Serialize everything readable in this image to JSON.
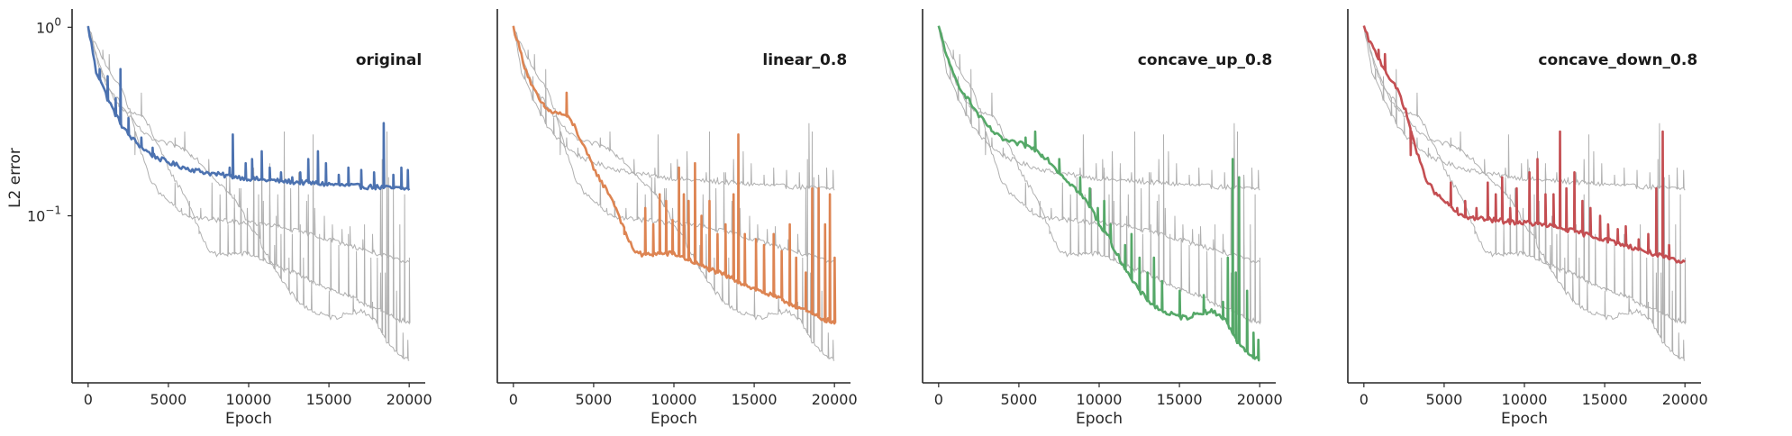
{
  "chart_data": {
    "type": "line",
    "layout": "1x4 small multiples, shared y axis",
    "y_scale": "log",
    "ylim": [
      0.013,
      1.25
    ],
    "xlim": [
      -1000,
      21000
    ],
    "ylabel": "L2 error",
    "xlabel": "Epoch",
    "x_ticks": [
      0,
      5000,
      10000,
      15000,
      20000
    ],
    "y_ticks": [
      {
        "value": 1,
        "base": "10",
        "exp": "0"
      },
      {
        "value": 0.1,
        "base": "10",
        "exp": "−1"
      }
    ],
    "grid": false,
    "note": "Each panel highlights one series in color; the other three series are drawn in thin gray.",
    "series_colors": [
      "#4c72b0",
      "#dd8452",
      "#55a868",
      "#c44e52"
    ],
    "background_color": "#b0b0b0",
    "panels": [
      {
        "title": "original",
        "series": "original",
        "color": "#4c72b0",
        "base": [
          [
            0,
            1.0
          ],
          [
            200,
            0.82
          ],
          [
            500,
            0.58
          ],
          [
            800,
            0.52
          ],
          [
            1200,
            0.42
          ],
          [
            1600,
            0.36
          ],
          [
            2000,
            0.31
          ],
          [
            2500,
            0.27
          ],
          [
            3000,
            0.245
          ],
          [
            3500,
            0.225
          ],
          [
            4000,
            0.21
          ],
          [
            4500,
            0.2
          ],
          [
            5000,
            0.192
          ],
          [
            6000,
            0.18
          ],
          [
            7000,
            0.172
          ],
          [
            8000,
            0.166
          ],
          [
            9000,
            0.162
          ],
          [
            10000,
            0.158
          ],
          [
            11000,
            0.155
          ],
          [
            12000,
            0.153
          ],
          [
            13000,
            0.151
          ],
          [
            14000,
            0.149
          ],
          [
            15000,
            0.147
          ],
          [
            16000,
            0.145
          ],
          [
            17000,
            0.143
          ],
          [
            18000,
            0.142
          ],
          [
            19000,
            0.14
          ],
          [
            20000,
            0.139
          ]
        ],
        "spikes": [
          [
            700,
            0.6
          ],
          [
            1200,
            0.55
          ],
          [
            1700,
            0.42
          ],
          [
            2000,
            0.6
          ],
          [
            2500,
            0.33
          ],
          [
            3300,
            0.26
          ],
          [
            4000,
            0.23
          ],
          [
            8800,
            0.18
          ],
          [
            9000,
            0.27
          ],
          [
            9800,
            0.19
          ],
          [
            10200,
            0.2
          ],
          [
            10800,
            0.22
          ],
          [
            11300,
            0.18
          ],
          [
            12000,
            0.17
          ],
          [
            12700,
            0.16
          ],
          [
            13200,
            0.17
          ],
          [
            13700,
            0.2
          ],
          [
            14300,
            0.22
          ],
          [
            14800,
            0.19
          ],
          [
            15600,
            0.165
          ],
          [
            16200,
            0.18
          ],
          [
            17000,
            0.175
          ],
          [
            17800,
            0.17
          ],
          [
            18400,
            0.31
          ],
          [
            19000,
            0.165
          ],
          [
            19500,
            0.18
          ],
          [
            19900,
            0.175
          ]
        ]
      },
      {
        "title": "linear_0.8",
        "series": "linear_0.8",
        "color": "#dd8452",
        "base": [
          [
            0,
            1.0
          ],
          [
            300,
            0.82
          ],
          [
            700,
            0.62
          ],
          [
            1200,
            0.48
          ],
          [
            1700,
            0.4
          ],
          [
            2200,
            0.36
          ],
          [
            2800,
            0.35
          ],
          [
            3300,
            0.34
          ],
          [
            3800,
            0.3
          ],
          [
            4300,
            0.24
          ],
          [
            5000,
            0.18
          ],
          [
            5500,
            0.15
          ],
          [
            6000,
            0.13
          ],
          [
            6500,
            0.105
          ],
          [
            7000,
            0.08
          ],
          [
            7500,
            0.066
          ],
          [
            8000,
            0.062
          ],
          [
            9000,
            0.063
          ],
          [
            10000,
            0.063
          ],
          [
            11000,
            0.058
          ],
          [
            12000,
            0.053
          ],
          [
            13000,
            0.049
          ],
          [
            14000,
            0.045
          ],
          [
            15000,
            0.041
          ],
          [
            16000,
            0.038
          ],
          [
            17000,
            0.035
          ],
          [
            18000,
            0.032
          ],
          [
            19000,
            0.029
          ],
          [
            20000,
            0.027
          ]
        ],
        "spikes": [
          [
            1900,
            0.38
          ],
          [
            3300,
            0.45
          ],
          [
            6900,
            0.08
          ],
          [
            8200,
            0.11
          ],
          [
            8700,
            0.09
          ],
          [
            9100,
            0.13
          ],
          [
            9500,
            0.12
          ],
          [
            9900,
            0.095
          ],
          [
            10300,
            0.18
          ],
          [
            10600,
            0.13
          ],
          [
            10900,
            0.12
          ],
          [
            11300,
            0.19
          ],
          [
            11700,
            0.1
          ],
          [
            12200,
            0.12
          ],
          [
            12700,
            0.08
          ],
          [
            13200,
            0.09
          ],
          [
            13700,
            0.13
          ],
          [
            14000,
            0.27
          ],
          [
            14400,
            0.08
          ],
          [
            15100,
            0.075
          ],
          [
            15600,
            0.07
          ],
          [
            16200,
            0.08
          ],
          [
            16700,
            0.065
          ],
          [
            17200,
            0.09
          ],
          [
            17600,
            0.06
          ],
          [
            18200,
            0.05
          ],
          [
            18600,
            0.14
          ],
          [
            19000,
            0.14
          ],
          [
            19400,
            0.09
          ],
          [
            19700,
            0.13
          ],
          [
            20000,
            0.06
          ]
        ]
      },
      {
        "title": "concave_up_0.8",
        "series": "concave_up_0.8",
        "color": "#55a868",
        "base": [
          [
            0,
            1.0
          ],
          [
            300,
            0.82
          ],
          [
            700,
            0.62
          ],
          [
            1200,
            0.5
          ],
          [
            1800,
            0.42
          ],
          [
            2500,
            0.34
          ],
          [
            3200,
            0.29
          ],
          [
            3800,
            0.26
          ],
          [
            4500,
            0.245
          ],
          [
            5200,
            0.24
          ],
          [
            6000,
            0.225
          ],
          [
            6800,
            0.2
          ],
          [
            7500,
            0.17
          ],
          [
            8000,
            0.155
          ],
          [
            8500,
            0.14
          ],
          [
            9000,
            0.125
          ],
          [
            9500,
            0.11
          ],
          [
            10000,
            0.09
          ],
          [
            10500,
            0.08
          ],
          [
            11000,
            0.065
          ],
          [
            11500,
            0.055
          ],
          [
            12000,
            0.046
          ],
          [
            12500,
            0.04
          ],
          [
            13000,
            0.036
          ],
          [
            13500,
            0.033
          ],
          [
            14000,
            0.031
          ],
          [
            14500,
            0.03
          ],
          [
            15000,
            0.029
          ],
          [
            15500,
            0.029
          ],
          [
            16000,
            0.03
          ],
          [
            16500,
            0.031
          ],
          [
            17000,
            0.031
          ],
          [
            17500,
            0.03
          ],
          [
            18000,
            0.027
          ],
          [
            18500,
            0.022
          ],
          [
            19000,
            0.02
          ],
          [
            19500,
            0.018
          ],
          [
            20000,
            0.017
          ]
        ],
        "spikes": [
          [
            5400,
            0.26
          ],
          [
            6000,
            0.28
          ],
          [
            6400,
            0.21
          ],
          [
            7500,
            0.2
          ],
          [
            8800,
            0.16
          ],
          [
            9400,
            0.14
          ],
          [
            9900,
            0.11
          ],
          [
            10300,
            0.12
          ],
          [
            10700,
            0.09
          ],
          [
            11600,
            0.07
          ],
          [
            12000,
            0.08
          ],
          [
            12500,
            0.06
          ],
          [
            13000,
            0.05
          ],
          [
            13400,
            0.06
          ],
          [
            13900,
            0.045
          ],
          [
            15000,
            0.04
          ],
          [
            16500,
            0.038
          ],
          [
            17700,
            0.035
          ],
          [
            18000,
            0.06
          ],
          [
            18300,
            0.2
          ],
          [
            18500,
            0.05
          ],
          [
            18700,
            0.16
          ],
          [
            19200,
            0.04
          ],
          [
            19600,
            0.024
          ],
          [
            19900,
            0.022
          ]
        ]
      },
      {
        "title": "concave_down_0.8",
        "series": "concave_down_0.8",
        "color": "#c44e52",
        "base": [
          [
            0,
            1.0
          ],
          [
            300,
            0.86
          ],
          [
            700,
            0.74
          ],
          [
            1200,
            0.62
          ],
          [
            1700,
            0.52
          ],
          [
            2200,
            0.45
          ],
          [
            2600,
            0.36
          ],
          [
            3000,
            0.27
          ],
          [
            3500,
            0.19
          ],
          [
            4000,
            0.15
          ],
          [
            4500,
            0.13
          ],
          [
            5000,
            0.12
          ],
          [
            5500,
            0.11
          ],
          [
            6000,
            0.1
          ],
          [
            7000,
            0.097
          ],
          [
            8000,
            0.095
          ],
          [
            9000,
            0.093
          ],
          [
            10000,
            0.092
          ],
          [
            11000,
            0.09
          ],
          [
            12000,
            0.087
          ],
          [
            13000,
            0.083
          ],
          [
            14000,
            0.079
          ],
          [
            15000,
            0.075
          ],
          [
            16000,
            0.071
          ],
          [
            17000,
            0.067
          ],
          [
            18000,
            0.063
          ],
          [
            19000,
            0.059
          ],
          [
            20000,
            0.056
          ]
        ],
        "spikes": [
          [
            900,
            0.76
          ],
          [
            1300,
            0.72
          ],
          [
            2900,
            0.21
          ],
          [
            5400,
            0.15
          ],
          [
            5800,
            0.11
          ],
          [
            6300,
            0.12
          ],
          [
            7000,
            0.11
          ],
          [
            7700,
            0.15
          ],
          [
            8200,
            0.13
          ],
          [
            8600,
            0.16
          ],
          [
            9100,
            0.11
          ],
          [
            9500,
            0.14
          ],
          [
            10300,
            0.17
          ],
          [
            10800,
            0.2
          ],
          [
            11300,
            0.13
          ],
          [
            11800,
            0.13
          ],
          [
            12200,
            0.28
          ],
          [
            12600,
            0.14
          ],
          [
            13100,
            0.17
          ],
          [
            13600,
            0.12
          ],
          [
            14100,
            0.11
          ],
          [
            14700,
            0.1
          ],
          [
            15200,
            0.09
          ],
          [
            15800,
            0.085
          ],
          [
            16300,
            0.088
          ],
          [
            17100,
            0.075
          ],
          [
            17700,
            0.08
          ],
          [
            18200,
            0.14
          ],
          [
            18600,
            0.28
          ],
          [
            19000,
            0.07
          ]
        ]
      }
    ]
  }
}
